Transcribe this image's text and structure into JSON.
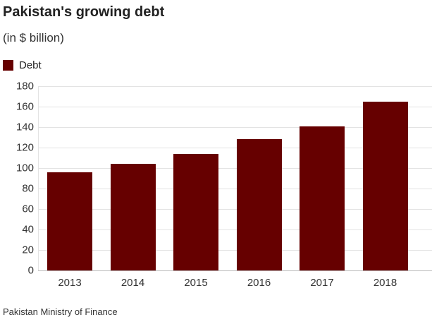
{
  "header": {
    "title": "Pakistan's growing debt",
    "subtitle": "(in $ billion)"
  },
  "legend": {
    "label": "Debt",
    "color": "#660000"
  },
  "footer": {
    "source": "Pakistan Ministry of Finance"
  },
  "chart_data": {
    "type": "bar",
    "title": "Pakistan's growing debt",
    "subtitle": "(in $ billion)",
    "categories": [
      "2013",
      "2014",
      "2015",
      "2016",
      "2017",
      "2018"
    ],
    "series": [
      {
        "name": "Debt",
        "values": [
          96,
          104,
          114,
          128,
          141,
          165
        ],
        "color": "#660000"
      }
    ],
    "xlabel": "",
    "ylabel": "",
    "ylim": [
      0,
      180
    ],
    "yticks": [
      "0",
      "20",
      "40",
      "60",
      "80",
      "100",
      "120",
      "140",
      "160",
      "180"
    ],
    "grid": true,
    "legend_position": "top-left",
    "source": "Pakistan Ministry of Finance"
  }
}
